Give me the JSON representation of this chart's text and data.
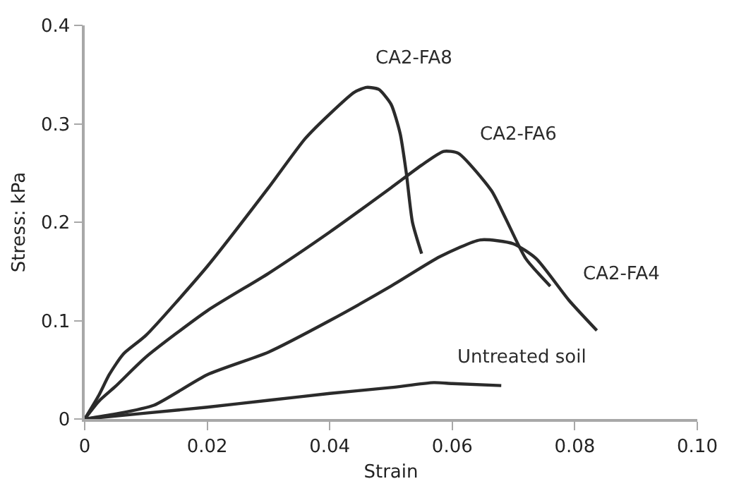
{
  "chart_data": {
    "type": "line",
    "xlabel": "Strain",
    "ylabel": "Stress: kPa",
    "xlim": [
      0,
      0.1
    ],
    "xticks": [
      0,
      0.02,
      0.04,
      0.06,
      0.08,
      {
        "value": 0.1,
        "label": "0.10"
      }
    ],
    "ylim": [
      0,
      0.4
    ],
    "yticks": [
      0,
      0.1,
      0.2,
      0.3,
      0.4
    ],
    "legend": false,
    "marker": "none",
    "line_style": "solid",
    "series": [
      {
        "name": "CA2-FA8",
        "color": "#2b2b2b",
        "x": [
          0,
          0.0023,
          0.004,
          0.0063,
          0.01,
          0.02,
          0.03,
          0.036,
          0.04,
          0.044,
          0.046,
          0.048,
          0.05,
          0.0515,
          0.0525,
          0.0535,
          0.055
        ],
        "values": [
          0,
          0.024,
          0.045,
          0.066,
          0.085,
          0.155,
          0.235,
          0.285,
          0.31,
          0.332,
          0.337,
          0.335,
          0.32,
          0.29,
          0.25,
          0.2,
          0.168
        ]
      },
      {
        "name": "CA2-FA6",
        "color": "#2b2b2b",
        "x": [
          0,
          0.0023,
          0.005,
          0.01,
          0.02,
          0.03,
          0.04,
          0.05,
          0.055,
          0.0586,
          0.061,
          0.0664,
          0.0687,
          0.072,
          0.076
        ],
        "values": [
          0,
          0.018,
          0.033,
          0.063,
          0.11,
          0.148,
          0.19,
          0.235,
          0.258,
          0.272,
          0.27,
          0.232,
          0.204,
          0.163,
          0.135
        ]
      },
      {
        "name": "CA2-FA4",
        "color": "#2b2b2b",
        "x": [
          0,
          0.005,
          0.0113,
          0.02,
          0.03,
          0.04,
          0.05,
          0.058,
          0.0646,
          0.07,
          0.0737,
          0.079,
          0.0836
        ],
        "values": [
          0,
          0.005,
          0.014,
          0.045,
          0.068,
          0.1,
          0.135,
          0.165,
          0.182,
          0.178,
          0.163,
          0.121,
          0.09
        ]
      },
      {
        "name": "Untreated soil",
        "color": "#2b2b2b",
        "x": [
          0,
          0.01,
          0.02,
          0.03,
          0.04,
          0.05,
          0.057,
          0.06,
          0.068
        ],
        "values": [
          0,
          0.006,
          0.012,
          0.019,
          0.026,
          0.032,
          0.037,
          0.036,
          0.034
        ]
      }
    ]
  }
}
